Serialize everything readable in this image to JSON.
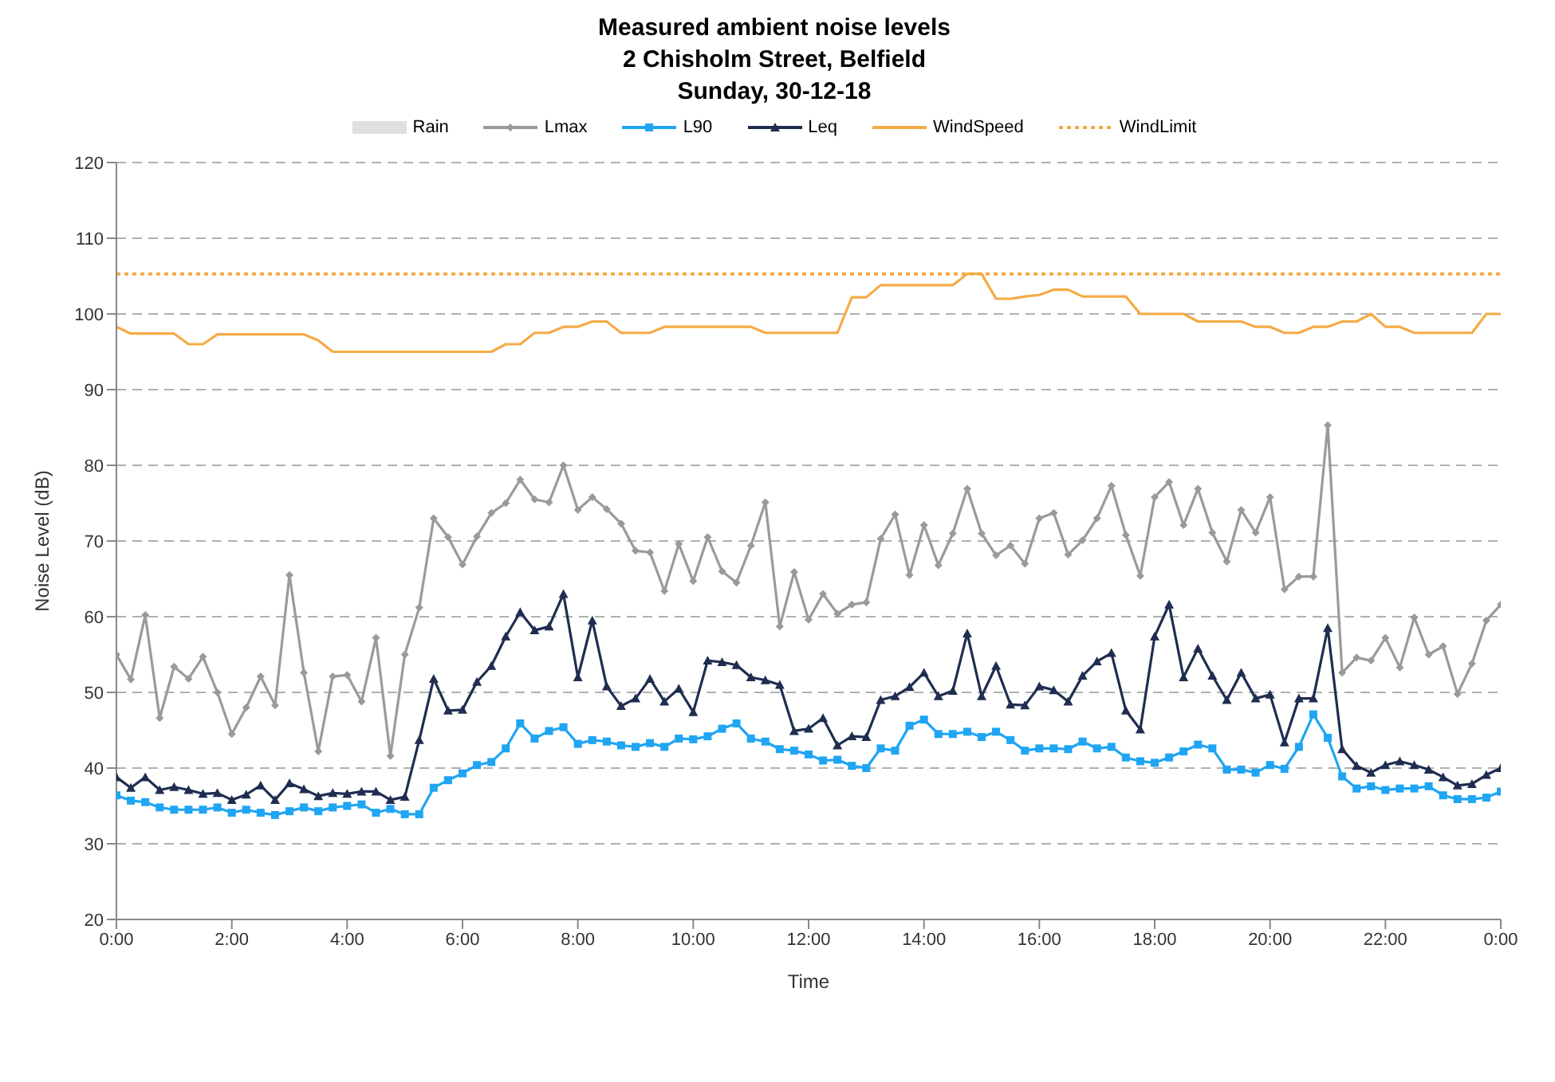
{
  "chart_data": {
    "type": "line",
    "title": "Measured ambient noise levels\n2 Chisholm Street, Belfield\nSunday, 30-12-18",
    "xlabel": "Time",
    "ylabel": "Noise Level (dB)",
    "x": [
      0,
      0.25,
      0.5,
      0.75,
      1,
      1.25,
      1.5,
      1.75,
      2,
      2.25,
      2.5,
      2.75,
      3,
      3.25,
      3.5,
      3.75,
      4,
      4.25,
      4.5,
      4.75,
      5,
      5.25,
      5.5,
      5.75,
      6,
      6.25,
      6.5,
      6.75,
      7,
      7.25,
      7.5,
      7.75,
      8,
      8.25,
      8.5,
      8.75,
      9,
      9.25,
      9.5,
      9.75,
      10,
      10.25,
      10.5,
      10.75,
      11,
      11.25,
      11.5,
      11.75,
      12,
      12.25,
      12.5,
      12.75,
      13,
      13.25,
      13.5,
      13.75,
      14,
      14.25,
      14.5,
      14.75,
      15,
      15.25,
      15.5,
      15.75,
      16,
      16.25,
      16.5,
      16.75,
      17,
      17.25,
      17.5,
      17.75,
      18,
      18.25,
      18.5,
      18.75,
      19,
      19.25,
      19.5,
      19.75,
      20,
      20.25,
      20.5,
      20.75,
      21,
      21.25,
      21.5,
      21.75,
      22,
      22.25,
      22.5,
      22.75,
      23,
      23.25,
      23.5,
      23.75,
      24
    ],
    "xlim": [
      0,
      24
    ],
    "xticks": [
      {
        "value": 0,
        "label": "0:00"
      },
      {
        "value": 2,
        "label": "2:00"
      },
      {
        "value": 4,
        "label": "4:00"
      },
      {
        "value": 6,
        "label": "6:00"
      },
      {
        "value": 8,
        "label": "8:00"
      },
      {
        "value": 10,
        "label": "10:00"
      },
      {
        "value": 12,
        "label": "12:00"
      },
      {
        "value": 14,
        "label": "14:00"
      },
      {
        "value": 16,
        "label": "16:00"
      },
      {
        "value": 18,
        "label": "18:00"
      },
      {
        "value": 20,
        "label": "20:00"
      },
      {
        "value": 22,
        "label": "22:00"
      },
      {
        "value": 24,
        "label": "0:00"
      }
    ],
    "ylim": [
      20,
      120
    ],
    "yticks": [
      20,
      30,
      40,
      50,
      60,
      70,
      80,
      90,
      100,
      110,
      120
    ],
    "grid": "y",
    "legend": "top",
    "series": [
      {
        "name": "Rain",
        "type": "area",
        "color": "#e0e0e0",
        "values": [
          null,
          null,
          null,
          null,
          null,
          null,
          null,
          null,
          null,
          null,
          null,
          null,
          null,
          null,
          null,
          null,
          null,
          null,
          null,
          null,
          null,
          null,
          null,
          null,
          null,
          null,
          null,
          null,
          null,
          null,
          null,
          null,
          null,
          null,
          null,
          null,
          null,
          null,
          null,
          null,
          null,
          null,
          null,
          null,
          null,
          null,
          null,
          null,
          null,
          null,
          null,
          null,
          null,
          null,
          null,
          null,
          null,
          null,
          null,
          null,
          null,
          null,
          null,
          null,
          null,
          null,
          null,
          null,
          null,
          null,
          null,
          null,
          null,
          null,
          null,
          null,
          null,
          null,
          null,
          null,
          null,
          null,
          null,
          null,
          null,
          null,
          null,
          null,
          null,
          null,
          null,
          null,
          null,
          null,
          null,
          null,
          null
        ]
      },
      {
        "name": "Lmax",
        "color": "#9a9a9a",
        "marker": "diamond",
        "values": [
          55.0,
          51.7,
          60.2,
          46.6,
          53.4,
          51.8,
          54.7,
          50.0,
          44.5,
          48.0,
          52.1,
          48.3,
          65.5,
          52.6,
          42.2,
          52.1,
          52.3,
          48.8,
          57.2,
          41.6,
          55.0,
          61.2,
          73.0,
          70.5,
          66.9,
          70.6,
          73.7,
          75.0,
          78.1,
          75.5,
          75.1,
          80.0,
          74.1,
          75.8,
          74.2,
          72.3,
          68.7,
          68.5,
          63.4,
          69.6,
          64.7,
          70.5,
          66.0,
          64.5,
          69.4,
          75.1,
          58.7,
          65.9,
          59.6,
          63.0,
          60.4,
          61.6,
          61.9,
          70.3,
          73.5,
          65.5,
          72.1,
          66.8,
          71.0,
          76.9,
          71.0,
          68.1,
          69.4,
          67.0,
          73.0,
          73.7,
          68.2,
          70.1,
          73.0,
          77.3,
          70.8,
          65.4,
          75.8,
          77.8,
          72.1,
          76.9,
          71.1,
          67.3,
          74.1,
          71.1,
          75.8,
          63.6,
          65.3,
          65.3,
          85.3,
          52.6,
          54.6,
          54.2,
          57.2,
          53.3,
          59.9,
          55.0,
          56.1,
          49.8,
          53.8,
          59.5,
          61.6
        ]
      },
      {
        "name": "L90",
        "color": "#1fa5f2",
        "marker": "square",
        "values": [
          36.4,
          35.7,
          35.5,
          34.8,
          34.5,
          34.5,
          34.5,
          34.8,
          34.1,
          34.5,
          34.1,
          33.8,
          34.3,
          34.8,
          34.3,
          34.8,
          35.0,
          35.2,
          34.1,
          34.6,
          33.9,
          33.9,
          37.4,
          38.4,
          39.3,
          40.4,
          40.8,
          42.6,
          45.9,
          43.9,
          44.9,
          45.4,
          43.2,
          43.7,
          43.5,
          43.0,
          42.8,
          43.3,
          42.8,
          43.9,
          43.8,
          44.2,
          45.2,
          45.9,
          43.9,
          43.5,
          42.5,
          42.3,
          41.8,
          41.0,
          41.1,
          40.3,
          40.0,
          42.6,
          42.3,
          45.6,
          46.4,
          44.5,
          44.5,
          44.8,
          44.1,
          44.8,
          43.7,
          42.3,
          42.6,
          42.6,
          42.5,
          43.5,
          42.6,
          42.8,
          41.4,
          40.9,
          40.7,
          41.4,
          42.2,
          43.1,
          42.6,
          39.8,
          39.8,
          39.4,
          40.4,
          39.9,
          42.8,
          47.1,
          44.0,
          38.9,
          37.3,
          37.6,
          37.1,
          37.3,
          37.3,
          37.6,
          36.4,
          35.9,
          35.9,
          36.1,
          36.9
        ]
      },
      {
        "name": "Leq",
        "color": "#1f2d50",
        "marker": "triangle",
        "values": [
          38.8,
          37.4,
          38.8,
          37.1,
          37.5,
          37.1,
          36.6,
          36.7,
          35.8,
          36.5,
          37.7,
          35.8,
          38.0,
          37.2,
          36.3,
          36.7,
          36.6,
          36.9,
          36.9,
          35.8,
          36.2,
          43.7,
          51.8,
          47.6,
          47.7,
          51.4,
          53.5,
          57.4,
          60.6,
          58.2,
          58.7,
          63.0,
          52.0,
          59.5,
          50.8,
          48.2,
          49.2,
          51.8,
          48.8,
          50.5,
          47.4,
          54.2,
          54.0,
          53.6,
          52.0,
          51.6,
          51.0,
          44.9,
          45.2,
          46.6,
          43.0,
          44.2,
          44.1,
          49.0,
          49.5,
          50.7,
          52.6,
          49.5,
          50.2,
          57.8,
          49.5,
          53.5,
          48.4,
          48.3,
          50.8,
          50.3,
          48.8,
          52.2,
          54.1,
          55.2,
          47.6,
          45.1,
          57.4,
          61.6,
          52.0,
          55.8,
          52.2,
          49.0,
          52.6,
          49.2,
          49.7,
          43.4,
          49.2,
          49.2,
          58.5,
          42.5,
          40.3,
          39.4,
          40.4,
          40.9,
          40.4,
          39.8,
          38.8,
          37.7,
          37.9,
          39.1,
          40.0
        ]
      },
      {
        "name": "WindSpeed",
        "color": "#f5ab45",
        "marker": "none",
        "values": [
          98.3,
          97.4,
          97.4,
          97.4,
          97.4,
          96,
          96,
          97.3,
          97.3,
          97.3,
          97.3,
          97.3,
          97.3,
          97.3,
          96.5,
          95,
          95,
          95,
          95,
          95,
          95,
          95,
          95,
          95,
          95,
          95,
          95,
          96,
          96,
          97.5,
          97.5,
          98.3,
          98.3,
          99,
          99,
          97.5,
          97.5,
          97.5,
          98.3,
          98.3,
          98.3,
          98.3,
          98.3,
          98.3,
          98.3,
          97.5,
          97.5,
          97.5,
          97.5,
          97.5,
          97.5,
          102.2,
          102.2,
          103.8,
          103.8,
          103.8,
          103.8,
          103.8,
          103.8,
          105.3,
          105.3,
          102,
          102,
          102.3,
          102.5,
          103.2,
          103.2,
          102.3,
          102.3,
          102.3,
          102.3,
          100,
          100,
          100,
          100,
          99,
          99,
          99,
          99,
          98.3,
          98.3,
          97.5,
          97.5,
          98.3,
          98.3,
          99,
          99,
          100,
          98.3,
          98.3,
          97.5,
          97.5,
          97.5,
          97.5,
          97.5,
          100,
          100
        ]
      },
      {
        "name": "WindLimit",
        "color": "#f5ab45",
        "marker": "none",
        "line_style": "dotted",
        "values": [
          105.3,
          105.3,
          105.3,
          105.3,
          105.3,
          105.3,
          105.3,
          105.3,
          105.3,
          105.3,
          105.3,
          105.3,
          105.3,
          105.3,
          105.3,
          105.3,
          105.3,
          105.3,
          105.3,
          105.3,
          105.3,
          105.3,
          105.3,
          105.3,
          105.3,
          105.3,
          105.3,
          105.3,
          105.3,
          105.3,
          105.3,
          105.3,
          105.3,
          105.3,
          105.3,
          105.3,
          105.3,
          105.3,
          105.3,
          105.3,
          105.3,
          105.3,
          105.3,
          105.3,
          105.3,
          105.3,
          105.3,
          105.3,
          105.3,
          105.3,
          105.3,
          105.3,
          105.3,
          105.3,
          105.3,
          105.3,
          105.3,
          105.3,
          105.3,
          105.3,
          105.3,
          105.3,
          105.3,
          105.3,
          105.3,
          105.3,
          105.3,
          105.3,
          105.3,
          105.3,
          105.3,
          105.3,
          105.3,
          105.3,
          105.3,
          105.3,
          105.3,
          105.3,
          105.3,
          105.3,
          105.3,
          105.3,
          105.3,
          105.3,
          105.3,
          105.3,
          105.3,
          105.3,
          105.3,
          105.3,
          105.3,
          105.3,
          105.3,
          105.3,
          105.3,
          105.3,
          105.3
        ]
      }
    ]
  }
}
